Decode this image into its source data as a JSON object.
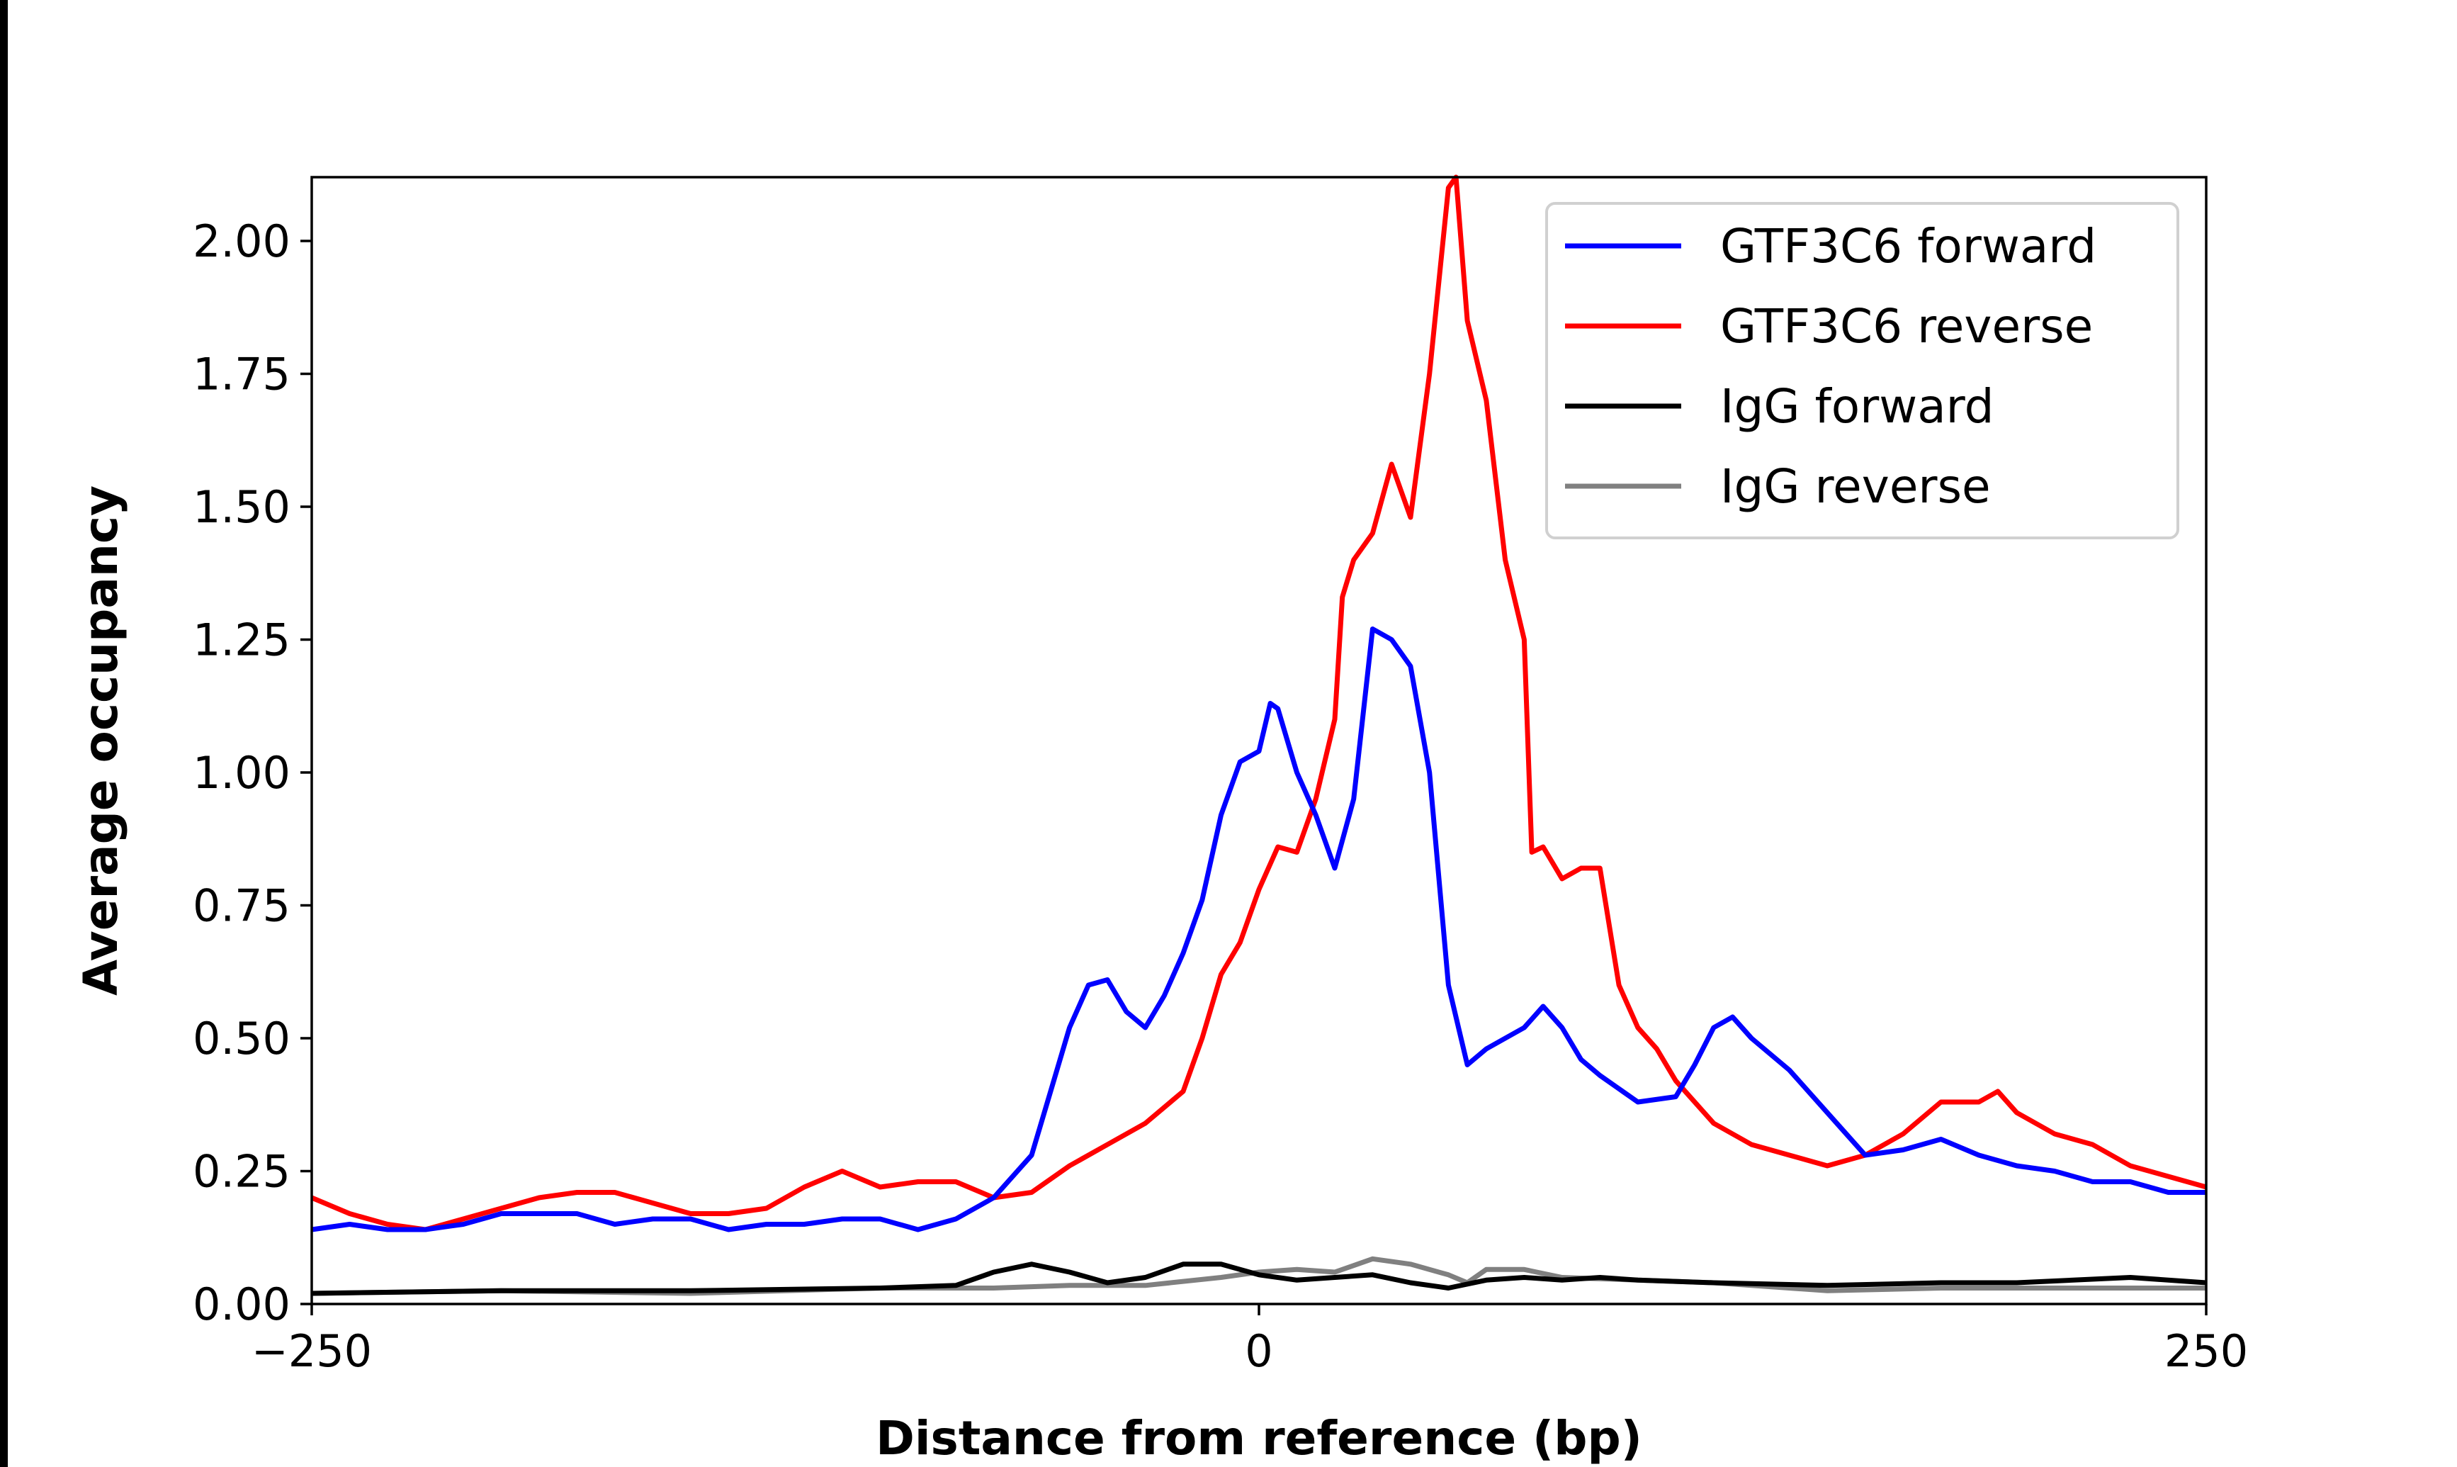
{
  "chart_data": {
    "type": "line",
    "title": "",
    "xlabel": "Distance from reference (bp)",
    "ylabel": "Average occupancy",
    "xlim": [
      -250,
      250
    ],
    "ylim": [
      0,
      2.12
    ],
    "xticks": [
      -250,
      0,
      250
    ],
    "xtick_labels": [
      "−250",
      "0",
      "250"
    ],
    "yticks": [
      0,
      0.25,
      0.5,
      0.75,
      1.0,
      1.25,
      1.5,
      1.75,
      2.0
    ],
    "ytick_labels": [
      "0.00",
      "0.25",
      "0.50",
      "0.75",
      "1.00",
      "1.25",
      "1.50",
      "1.75",
      "2.00"
    ],
    "grid": false,
    "legend_position": "top-right",
    "series": [
      {
        "name": "GTF3C6 forward",
        "color": "#0000ff",
        "x": [
          -250,
          -240,
          -230,
          -220,
          -210,
          -200,
          -190,
          -180,
          -170,
          -160,
          -150,
          -140,
          -130,
          -120,
          -110,
          -100,
          -90,
          -80,
          -70,
          -60,
          -55,
          -50,
          -45,
          -40,
          -35,
          -30,
          -25,
          -20,
          -15,
          -10,
          -5,
          0,
          3,
          5,
          10,
          15,
          20,
          25,
          30,
          35,
          40,
          45,
          50,
          55,
          60,
          65,
          70,
          75,
          80,
          85,
          90,
          100,
          110,
          115,
          120,
          125,
          130,
          140,
          150,
          160,
          170,
          180,
          190,
          200,
          210,
          220,
          230,
          240,
          250
        ],
        "y": [
          0.14,
          0.15,
          0.14,
          0.14,
          0.15,
          0.17,
          0.17,
          0.17,
          0.15,
          0.16,
          0.16,
          0.14,
          0.15,
          0.15,
          0.16,
          0.16,
          0.14,
          0.16,
          0.2,
          0.28,
          0.4,
          0.52,
          0.6,
          0.61,
          0.55,
          0.52,
          0.58,
          0.66,
          0.76,
          0.92,
          1.02,
          1.04,
          1.13,
          1.12,
          1.0,
          0.92,
          0.82,
          0.95,
          1.27,
          1.25,
          1.2,
          1.0,
          0.6,
          0.45,
          0.48,
          0.5,
          0.52,
          0.56,
          0.52,
          0.46,
          0.43,
          0.38,
          0.39,
          0.45,
          0.52,
          0.54,
          0.5,
          0.44,
          0.36,
          0.28,
          0.29,
          0.31,
          0.28,
          0.26,
          0.25,
          0.23,
          0.23,
          0.21,
          0.21
        ]
      },
      {
        "name": "GTF3C6 reverse",
        "color": "#ff0000",
        "x": [
          -250,
          -240,
          -230,
          -220,
          -210,
          -200,
          -190,
          -180,
          -170,
          -160,
          -150,
          -140,
          -130,
          -120,
          -110,
          -100,
          -90,
          -80,
          -70,
          -60,
          -50,
          -40,
          -30,
          -20,
          -15,
          -10,
          -5,
          0,
          5,
          10,
          15,
          20,
          22,
          25,
          30,
          35,
          40,
          45,
          50,
          52,
          55,
          60,
          65,
          70,
          72,
          75,
          80,
          85,
          90,
          95,
          100,
          105,
          110,
          120,
          130,
          140,
          150,
          160,
          170,
          180,
          190,
          195,
          200,
          210,
          220,
          230,
          240,
          250
        ],
        "y": [
          0.2,
          0.17,
          0.15,
          0.14,
          0.16,
          0.18,
          0.2,
          0.21,
          0.21,
          0.19,
          0.17,
          0.17,
          0.18,
          0.22,
          0.25,
          0.22,
          0.23,
          0.23,
          0.2,
          0.21,
          0.26,
          0.3,
          0.34,
          0.4,
          0.5,
          0.62,
          0.68,
          0.78,
          0.86,
          0.85,
          0.95,
          1.1,
          1.33,
          1.4,
          1.45,
          1.58,
          1.48,
          1.75,
          2.1,
          2.12,
          1.85,
          1.7,
          1.4,
          1.25,
          0.85,
          0.86,
          0.8,
          0.82,
          0.82,
          0.6,
          0.52,
          0.48,
          0.42,
          0.34,
          0.3,
          0.28,
          0.26,
          0.28,
          0.32,
          0.38,
          0.38,
          0.4,
          0.36,
          0.32,
          0.3,
          0.26,
          0.24,
          0.22
        ]
      },
      {
        "name": "IgG forward",
        "color": "#000000",
        "x": [
          -250,
          -200,
          -150,
          -100,
          -80,
          -70,
          -60,
          -50,
          -40,
          -30,
          -20,
          -10,
          0,
          10,
          20,
          30,
          40,
          50,
          60,
          70,
          80,
          90,
          100,
          120,
          150,
          180,
          200,
          230,
          250
        ],
        "y": [
          0.02,
          0.025,
          0.025,
          0.03,
          0.035,
          0.06,
          0.075,
          0.06,
          0.04,
          0.05,
          0.075,
          0.075,
          0.055,
          0.045,
          0.05,
          0.055,
          0.04,
          0.03,
          0.045,
          0.05,
          0.045,
          0.05,
          0.045,
          0.04,
          0.035,
          0.04,
          0.04,
          0.05,
          0.04
        ]
      },
      {
        "name": "IgG reverse",
        "color": "#808080",
        "x": [
          -250,
          -200,
          -150,
          -100,
          -70,
          -50,
          -30,
          -10,
          0,
          10,
          20,
          30,
          40,
          50,
          55,
          60,
          70,
          80,
          100,
          120,
          150,
          180,
          200,
          250
        ],
        "y": [
          0.02,
          0.025,
          0.02,
          0.03,
          0.03,
          0.035,
          0.035,
          0.05,
          0.06,
          0.065,
          0.06,
          0.085,
          0.075,
          0.055,
          0.04,
          0.065,
          0.065,
          0.05,
          0.045,
          0.04,
          0.025,
          0.03,
          0.03,
          0.03
        ]
      }
    ]
  }
}
